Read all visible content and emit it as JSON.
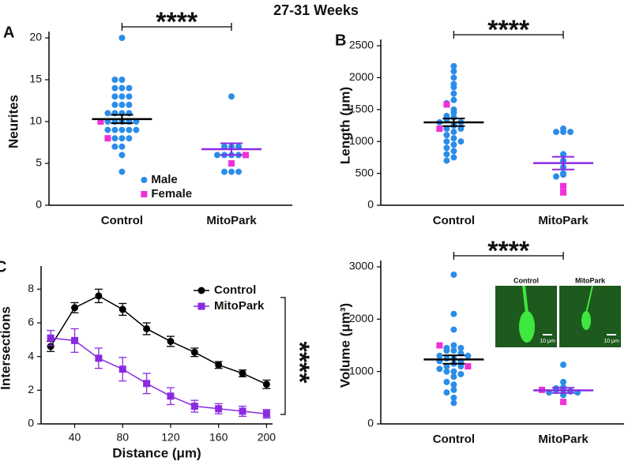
{
  "title": "27-31 Weeks",
  "chart_data": [
    {
      "type": "strip",
      "panel": "A",
      "ylabel": "Neurites",
      "categories": [
        "Control",
        "MitoPark"
      ],
      "series": [
        {
          "name": "Male",
          "color": "#2b8de8",
          "marker": "circle",
          "values": [
            [
              20,
              15,
              15,
              14,
              14,
              14,
              13,
              13,
              13,
              12,
              12,
              12,
              11,
              11,
              11,
              11,
              10,
              10,
              10,
              10,
              10,
              9,
              9,
              9,
              9,
              9,
              8,
              8,
              8,
              7,
              7,
              6,
              4
            ],
            [
              13,
              7,
              7,
              7,
              6,
              6,
              6,
              6,
              4,
              4,
              4
            ]
          ]
        },
        {
          "name": "Female",
          "color": "#f030d8",
          "marker": "square",
          "values": [
            [
              10,
              8
            ],
            [
              6,
              5
            ]
          ]
        }
      ],
      "means": [
        10.3,
        6.7
      ],
      "sem": [
        0.5,
        0.7
      ],
      "mean_colors": [
        "#000000",
        "#8a2be2"
      ],
      "ylim": [
        0,
        20
      ],
      "yticks": [
        0,
        5,
        10,
        15,
        20
      ],
      "significance": "****",
      "legend": true
    },
    {
      "type": "strip",
      "panel": "B",
      "ylabel": "Length (μm)",
      "categories": [
        "Control",
        "MitoPark"
      ],
      "series": [
        {
          "color": "#2b8de8",
          "marker": "circle",
          "values": [
            [
              2180,
              2100,
              2000,
              1900,
              1850,
              1750,
              1650,
              1600,
              1500,
              1450,
              1400,
              1380,
              1350,
              1300,
              1300,
              1250,
              1200,
              1200,
              1150,
              1100,
              1050,
              1000,
              1000,
              950,
              900,
              850,
              800,
              750,
              700
            ],
            [
              1200,
              1150,
              1150,
              1150,
              800,
              700,
              600,
              500,
              480,
              450
            ]
          ]
        },
        {
          "color": "#f030d8",
          "marker": "square",
          "values": [
            [
              1580,
              1200
            ],
            [
              300,
              200
            ]
          ]
        }
      ],
      "means": [
        1300,
        660
      ],
      "sem": [
        60,
        100
      ],
      "mean_colors": [
        "#000000",
        "#8a2be2"
      ],
      "ylim": [
        0,
        2500
      ],
      "yticks": [
        0,
        500,
        1000,
        1500,
        2000,
        2500
      ],
      "significance": "****",
      "legend": false
    },
    {
      "type": "line",
      "panel": "C",
      "xlabel": "Distance (μm)",
      "ylabel": "Intersections",
      "x": [
        20,
        40,
        60,
        80,
        100,
        120,
        140,
        160,
        180,
        200
      ],
      "series": [
        {
          "name": "Control",
          "color": "#000000",
          "marker": "circle",
          "values": [
            4.6,
            6.9,
            7.6,
            6.8,
            5.65,
            4.9,
            4.25,
            3.5,
            3.0,
            2.35
          ],
          "errors": [
            0.3,
            0.3,
            0.4,
            0.35,
            0.35,
            0.3,
            0.25,
            0.2,
            0.2,
            0.25
          ]
        },
        {
          "name": "MitoPark",
          "color": "#8a2be2",
          "marker": "square",
          "values": [
            5.1,
            4.95,
            3.9,
            3.25,
            2.4,
            1.65,
            1.05,
            0.9,
            0.75,
            0.6
          ],
          "errors": [
            0.45,
            0.7,
            0.6,
            0.7,
            0.6,
            0.5,
            0.35,
            0.3,
            0.3,
            0.25
          ]
        }
      ],
      "xlim": [
        12,
        205
      ],
      "xticks": [
        40,
        80,
        120,
        160,
        200
      ],
      "ylim": [
        0,
        9
      ],
      "yticks": [
        0,
        2,
        4,
        6,
        8
      ],
      "significance": "****",
      "legend": true
    },
    {
      "type": "strip",
      "ylabel": "Volume (μm³)",
      "categories": [
        "Control",
        "MitoPark"
      ],
      "series": [
        {
          "color": "#2b8de8",
          "marker": "circle",
          "values": [
            [
              2850,
              2100,
              1800,
              1500,
              1450,
              1450,
              1400,
              1400,
              1350,
              1300,
              1300,
              1250,
              1250,
              1200,
              1200,
              1150,
              1100,
              1100,
              1050,
              1000,
              1000,
              950,
              900,
              800,
              750,
              650,
              600,
              500,
              400
            ],
            [
              1130,
              800,
              700,
              680,
              650,
              650,
              620,
              600,
              600,
              550
            ]
          ]
        },
        {
          "color": "#f030d8",
          "marker": "square",
          "values": [
            [
              1500,
              1100
            ],
            [
              650,
              420
            ]
          ]
        }
      ],
      "means": [
        1230,
        640
      ],
      "sem": [
        80,
        50
      ],
      "mean_colors": [
        "#000000",
        "#8a2be2"
      ],
      "ylim": [
        0,
        3000
      ],
      "yticks": [
        0,
        1000,
        2000,
        3000
      ],
      "significance": "****",
      "legend": false,
      "inset": {
        "labels": [
          "Control",
          "MitoPark"
        ],
        "scale_bar": "10 μm"
      }
    }
  ]
}
